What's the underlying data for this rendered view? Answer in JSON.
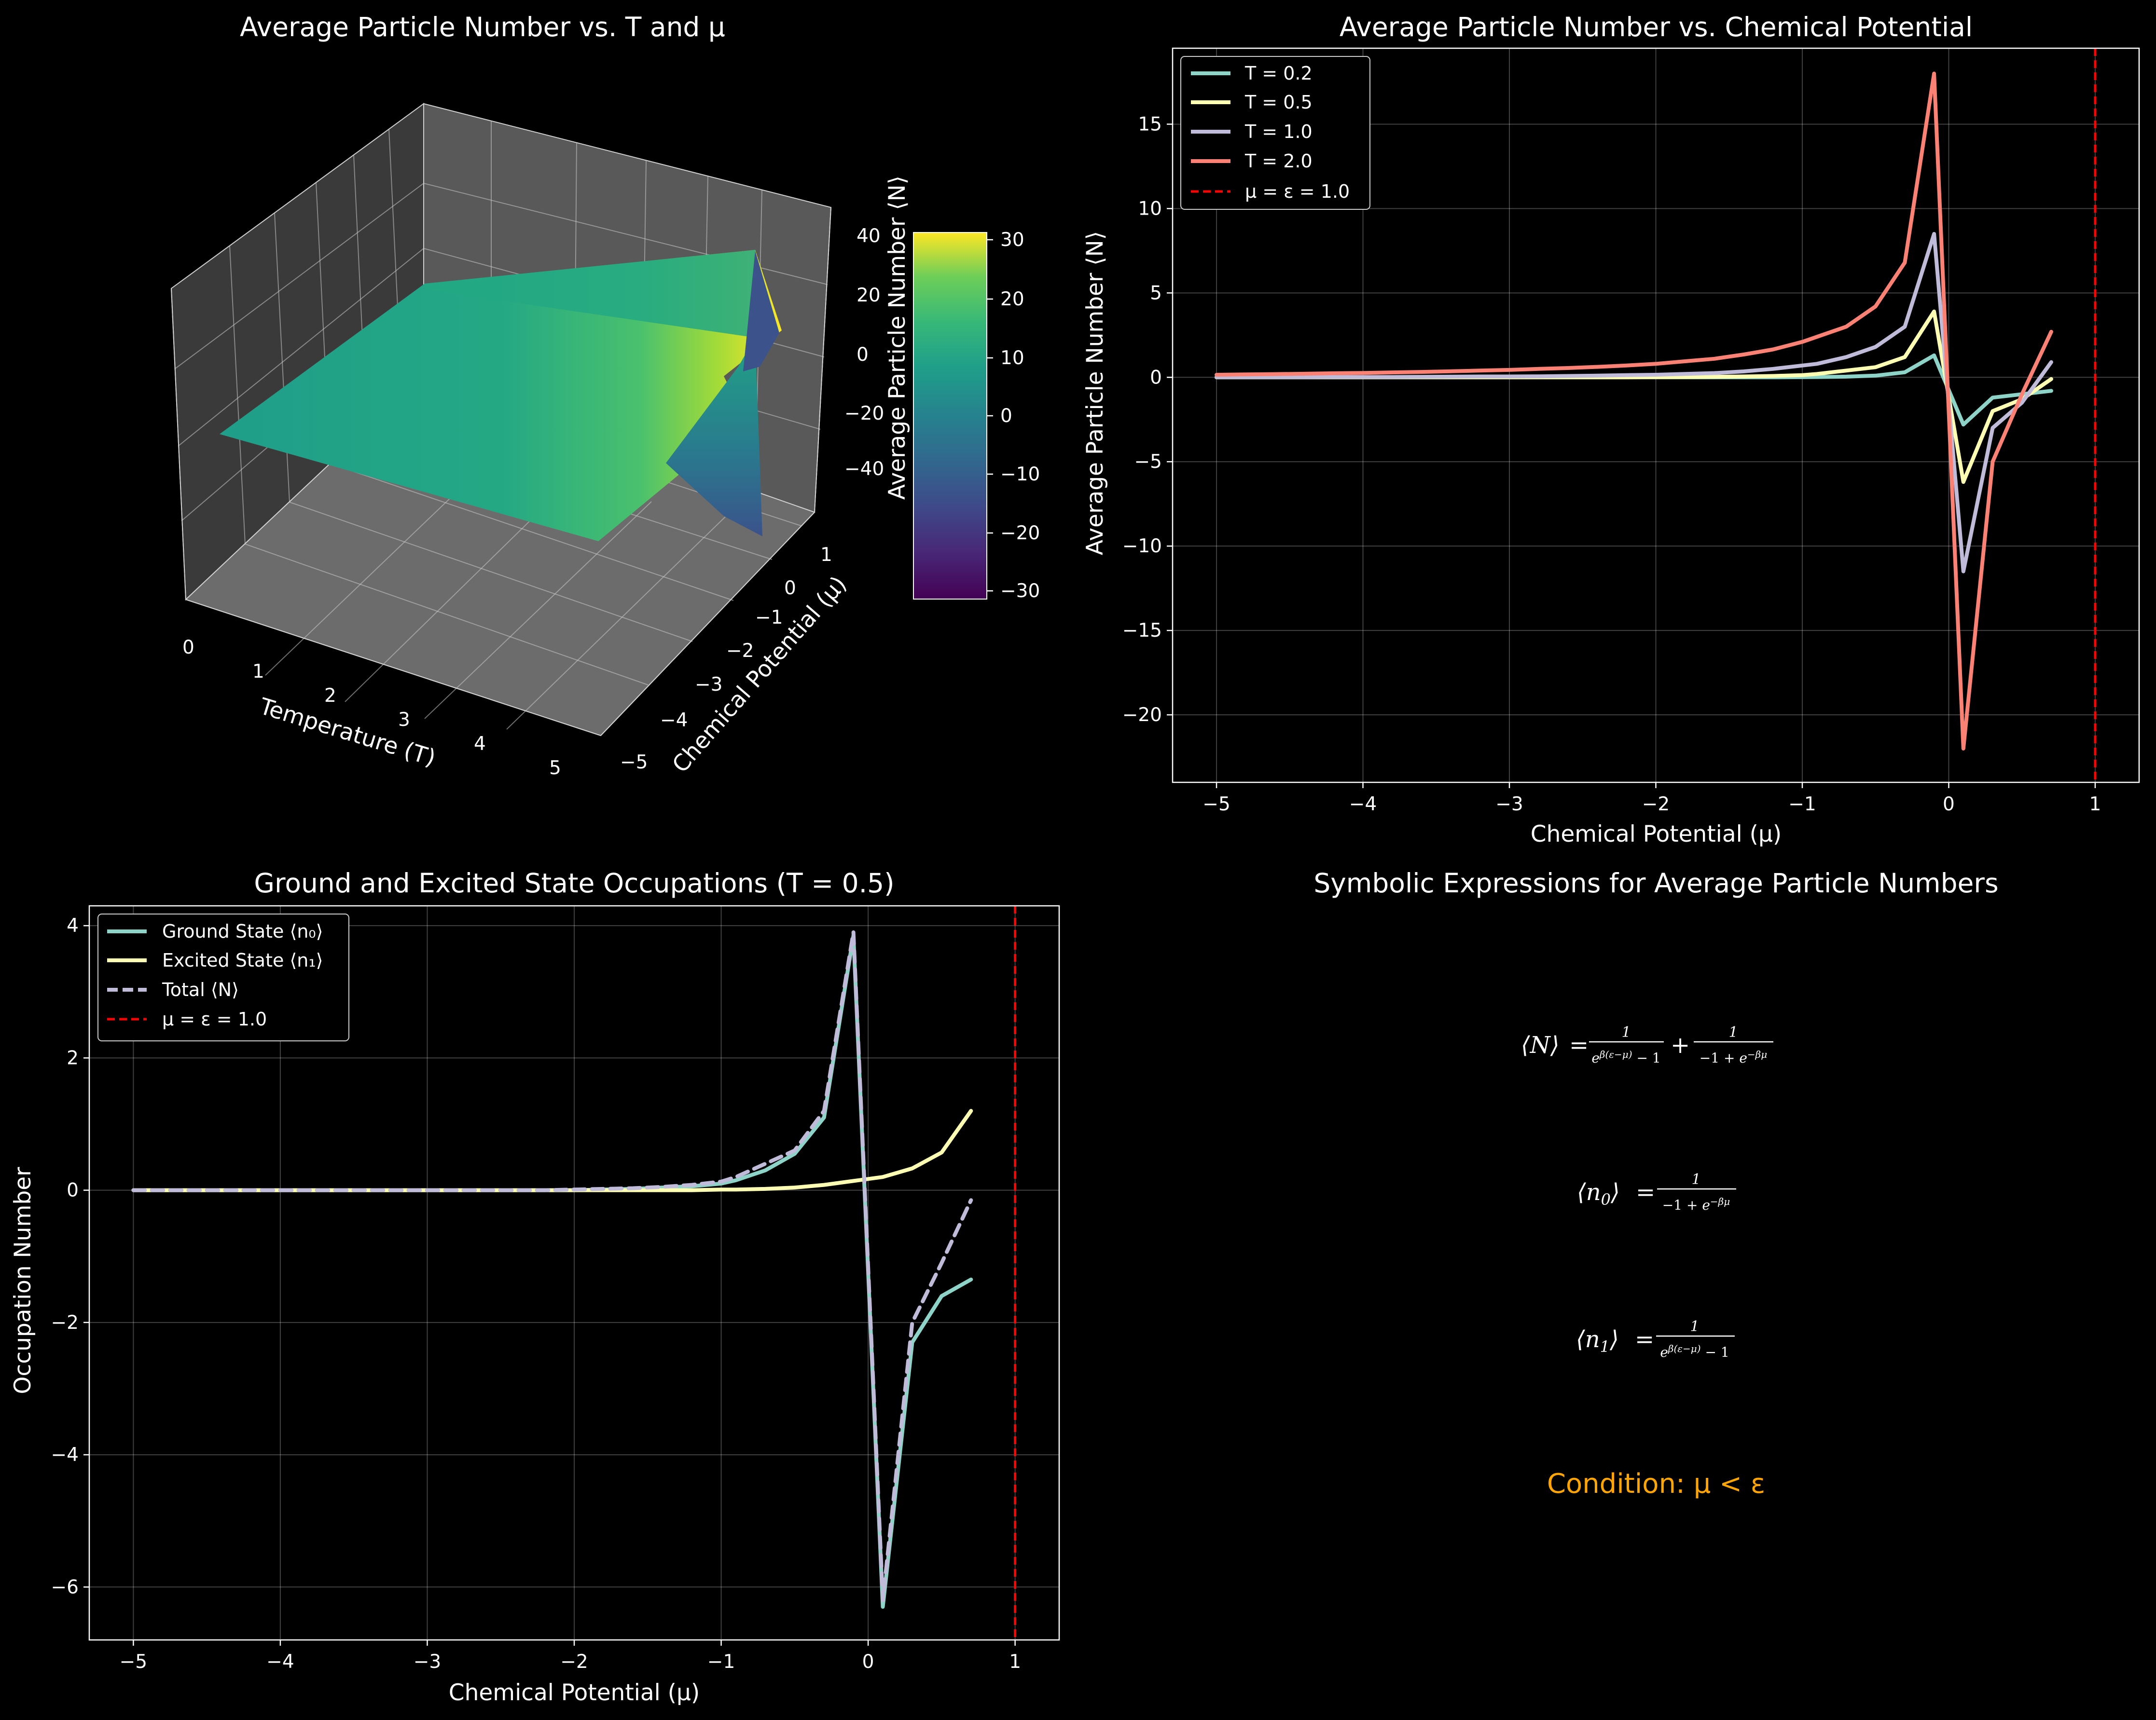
{
  "chart_data": [
    {
      "type": "surface3d",
      "title": "Average Particle Number vs. T and μ",
      "xlabel": "Temperature (T)",
      "ylabel": "Chemical Potential (μ)",
      "zlabel": "",
      "xticks": [
        "0",
        "1",
        "2",
        "3",
        "4",
        "5"
      ],
      "yticks": [
        "−5",
        "−4",
        "−3",
        "−2",
        "−1",
        "0",
        "1"
      ],
      "zticks": [
        "40",
        "20",
        "0",
        "−20",
        "−40"
      ],
      "colorbar": {
        "label": "Average Particle Number ⟨N⟩",
        "ticks": [
          "30",
          "20",
          "10",
          "0",
          "−10",
          "−20",
          "−30"
        ],
        "range": [
          -32,
          32
        ],
        "colormap": "viridis"
      }
    },
    {
      "type": "line",
      "title": "Average Particle Number vs. Chemical Potential",
      "xlabel": "Chemical Potential (μ)",
      "ylabel": "Average Particle Number ⟨N⟩",
      "xlim": [
        -5.3,
        1.3
      ],
      "ylim": [
        -24,
        19.5
      ],
      "xticks": [
        -5,
        -4,
        -3,
        -2,
        -1,
        0,
        1
      ],
      "xtick_labels": [
        "−5",
        "−4",
        "−3",
        "−2",
        "−1",
        "0",
        "1"
      ],
      "yticks": [
        15,
        10,
        5,
        0,
        -5,
        -10,
        -15,
        -20
      ],
      "ytick_labels": [
        "15",
        "10",
        "5",
        "0",
        "−5",
        "−10",
        "−15",
        "−20"
      ],
      "grid": true,
      "legend_position": "top-left",
      "x": [
        -5.0,
        -4.8,
        -4.6,
        -4.4,
        -4.2,
        -4.0,
        -3.8,
        -3.6,
        -3.4,
        -3.2,
        -3.0,
        -2.8,
        -2.6,
        -2.4,
        -2.2,
        -2.0,
        -1.8,
        -1.6,
        -1.4,
        -1.2,
        -1.0,
        -0.9,
        -0.7,
        -0.5,
        -0.3,
        -0.1,
        0.1,
        0.3,
        0.5,
        0.7
      ],
      "series": [
        {
          "name": "T = 0.2",
          "color": "#8dd3c7",
          "values": [
            0,
            0,
            0,
            0,
            0,
            0,
            0,
            0,
            0,
            0,
            0,
            0,
            0,
            0,
            0,
            0,
            0,
            0,
            0,
            0,
            0.01,
            0.02,
            0.04,
            0.1,
            0.3,
            1.3,
            -2.8,
            -1.2,
            -1.0,
            -0.8
          ]
        },
        {
          "name": "T = 0.5",
          "color": "#feffb3",
          "values": [
            0,
            0,
            0,
            0,
            0,
            0,
            0,
            0,
            0,
            0,
            0,
            0,
            0,
            0,
            0,
            0.01,
            0.02,
            0.03,
            0.05,
            0.08,
            0.13,
            0.2,
            0.4,
            0.6,
            1.2,
            3.9,
            -6.2,
            -2.0,
            -1.3,
            -0.1
          ]
        },
        {
          "name": "T = 1.0",
          "color": "#bfbbd9",
          "values": [
            0.01,
            0.01,
            0.01,
            0.01,
            0.02,
            0.02,
            0.02,
            0.03,
            0.04,
            0.05,
            0.05,
            0.06,
            0.08,
            0.1,
            0.13,
            0.15,
            0.2,
            0.25,
            0.35,
            0.5,
            0.7,
            0.8,
            1.2,
            1.8,
            3.0,
            8.5,
            -11.5,
            -3.0,
            -1.5,
            0.9
          ]
        },
        {
          "name": "T = 2.0",
          "color": "#fa8174",
          "values": [
            0.15,
            0.17,
            0.19,
            0.21,
            0.24,
            0.26,
            0.29,
            0.32,
            0.36,
            0.4,
            0.44,
            0.5,
            0.55,
            0.62,
            0.7,
            0.8,
            0.95,
            1.1,
            1.35,
            1.65,
            2.1,
            2.4,
            3.0,
            4.2,
            6.8,
            18.0,
            -22.0,
            -5.0,
            -1.0,
            2.7
          ]
        }
      ],
      "reference_line": {
        "name": "μ = ε = 1.0",
        "x": 1.0,
        "color": "#ff0000",
        "style": "dashed"
      }
    },
    {
      "type": "line",
      "title": "Ground and Excited State Occupations (T = 0.5)",
      "xlabel": "Chemical Potential (μ)",
      "ylabel": "Occupation Number",
      "xlim": [
        -5.3,
        1.3
      ],
      "ylim": [
        -6.8,
        4.3
      ],
      "xticks": [
        -5,
        -4,
        -3,
        -2,
        -1,
        0,
        1
      ],
      "xtick_labels": [
        "−5",
        "−4",
        "−3",
        "−2",
        "−1",
        "0",
        "1"
      ],
      "yticks": [
        4,
        2,
        0,
        -2,
        -4,
        -6
      ],
      "ytick_labels": [
        "4",
        "2",
        "0",
        "−2",
        "−4",
        "−6"
      ],
      "grid": true,
      "legend_position": "top-left",
      "x": [
        -5.0,
        -4.8,
        -4.6,
        -4.4,
        -4.2,
        -4.0,
        -3.8,
        -3.6,
        -3.4,
        -3.2,
        -3.0,
        -2.8,
        -2.6,
        -2.4,
        -2.2,
        -2.0,
        -1.8,
        -1.6,
        -1.4,
        -1.2,
        -1.0,
        -0.9,
        -0.7,
        -0.5,
        -0.3,
        -0.1,
        0.1,
        0.3,
        0.5,
        0.7
      ],
      "series": [
        {
          "name": "Ground State ⟨n₀⟩",
          "color": "#8dd3c7",
          "style": "solid",
          "values": [
            0,
            0,
            0,
            0,
            0,
            0,
            0,
            0,
            0,
            0,
            0,
            0,
            0,
            0,
            0,
            0,
            0.01,
            0.02,
            0.04,
            0.06,
            0.1,
            0.15,
            0.3,
            0.55,
            1.1,
            3.85,
            -6.3,
            -2.3,
            -1.6,
            -1.35
          ]
        },
        {
          "name": "Excited State ⟨n₁⟩",
          "color": "#feffb3",
          "style": "solid",
          "values": [
            0,
            0,
            0,
            0,
            0,
            0,
            0,
            0,
            0,
            0,
            0,
            0,
            0,
            0,
            0,
            0,
            0,
            0,
            0,
            0,
            0.01,
            0.01,
            0.02,
            0.04,
            0.08,
            0.14,
            0.2,
            0.33,
            0.57,
            1.2
          ]
        },
        {
          "name": "Total ⟨N⟩",
          "color": "#bfbbd9",
          "style": "dashed",
          "values": [
            0,
            0,
            0,
            0,
            0,
            0,
            0,
            0,
            0,
            0,
            0,
            0,
            0,
            0,
            0,
            0.01,
            0.02,
            0.03,
            0.05,
            0.08,
            0.13,
            0.2,
            0.4,
            0.6,
            1.2,
            3.9,
            -6.2,
            -2.0,
            -1.1,
            -0.15
          ]
        }
      ],
      "reference_line": {
        "name": "μ = ε = 1.0",
        "x": 1.0,
        "color": "#ff0000",
        "style": "dashed"
      }
    },
    {
      "type": "text",
      "title": "Symbolic Expressions for Average Particle Numbers",
      "condition": "Condition: μ < ε",
      "condition_color": "#ffa500"
    }
  ]
}
